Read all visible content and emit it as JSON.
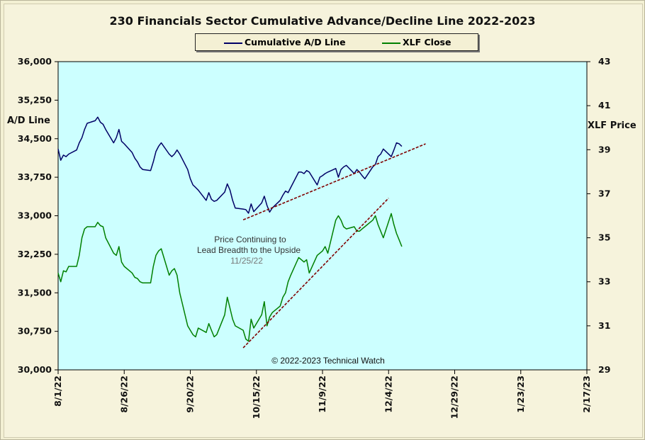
{
  "chart_data": {
    "type": "line",
    "title": "230 Financials  Sector Cumulative  Advance/Decline  Line 2022-2023",
    "left_axis": {
      "label": "A/D Line",
      "ylim": [
        30000,
        36000
      ],
      "ticks": [
        "30,000",
        "30,750",
        "31,500",
        "32,250",
        "33,000",
        "33,750",
        "34,500",
        "35,250",
        "36,000"
      ]
    },
    "right_axis": {
      "label": "XLF Price",
      "ylim": [
        29,
        43
      ],
      "ticks": [
        "29",
        "31",
        "33",
        "35",
        "37",
        "39",
        "41",
        "43"
      ]
    },
    "x_ticks": [
      "8/1/22",
      "8/26/22",
      "9/20/22",
      "10/15/22",
      "11/9/22",
      "12/4/22",
      "12/29/22",
      "1/23/23",
      "2/17/23"
    ],
    "x_range_days": [
      0,
      200
    ],
    "series": [
      {
        "name": "Cumulative A/D Line",
        "axis": "left",
        "color": "#000066",
        "x": [
          0,
          1,
          2,
          3,
          4,
          7,
          8,
          9,
          10,
          11,
          14,
          15,
          16,
          17,
          18,
          21,
          22,
          23,
          24,
          25,
          28,
          29,
          30,
          31,
          32,
          35,
          36,
          37,
          38,
          39,
          42,
          43,
          44,
          45,
          46,
          49,
          50,
          51,
          52,
          53,
          56,
          57,
          58,
          59,
          60,
          63,
          64,
          65,
          66,
          67,
          70,
          71,
          72,
          73,
          74,
          77,
          78,
          79,
          80,
          81,
          84,
          85,
          86,
          87,
          88,
          91,
          92,
          93,
          94,
          95,
          98,
          99,
          100,
          101,
          102,
          105,
          106,
          107,
          108,
          109,
          112,
          113,
          114,
          115,
          116,
          119,
          120,
          121,
          122,
          123,
          126,
          127,
          128,
          129,
          130
        ],
        "values": [
          34300,
          34080,
          34180,
          34150,
          34200,
          34280,
          34420,
          34520,
          34680,
          34800,
          34850,
          34920,
          34820,
          34780,
          34680,
          34420,
          34520,
          34680,
          34450,
          34400,
          34230,
          34120,
          34050,
          33950,
          33900,
          33880,
          34050,
          34250,
          34350,
          34420,
          34200,
          34150,
          34200,
          34280,
          34200,
          33900,
          33720,
          33600,
          33550,
          33500,
          33300,
          33450,
          33320,
          33280,
          33300,
          33460,
          33620,
          33500,
          33300,
          33150,
          33130,
          33120,
          33050,
          33230,
          33080,
          33250,
          33380,
          33200,
          33070,
          33150,
          33300,
          33400,
          33480,
          33450,
          33550,
          33850,
          33850,
          33820,
          33880,
          33850,
          33600,
          33750,
          33780,
          33820,
          33850,
          33920,
          33750,
          33900,
          33950,
          33980,
          33820,
          33900,
          33850,
          33780,
          33720,
          33950,
          34000,
          34150,
          34200,
          34300,
          34150,
          34280,
          34420,
          34400,
          34350
        ]
      },
      {
        "name": "XLF Close",
        "axis": "right",
        "color": "#008000",
        "x": [
          0,
          1,
          2,
          3,
          4,
          7,
          8,
          9,
          10,
          11,
          14,
          15,
          16,
          17,
          18,
          21,
          22,
          23,
          24,
          25,
          28,
          29,
          30,
          31,
          32,
          35,
          36,
          37,
          38,
          39,
          42,
          43,
          44,
          45,
          46,
          49,
          50,
          51,
          52,
          53,
          56,
          57,
          58,
          59,
          60,
          63,
          64,
          65,
          66,
          67,
          70,
          71,
          72,
          73,
          74,
          77,
          78,
          79,
          80,
          81,
          84,
          85,
          86,
          87,
          88,
          91,
          92,
          93,
          94,
          95,
          98,
          99,
          100,
          101,
          102,
          105,
          106,
          107,
          108,
          109,
          112,
          113,
          114,
          115,
          116,
          119,
          120,
          121,
          122,
          123,
          126,
          127,
          128,
          129,
          130
        ],
        "values": [
          33.4,
          33.0,
          33.5,
          33.45,
          33.7,
          33.7,
          34.2,
          35.0,
          35.4,
          35.5,
          35.5,
          35.7,
          35.55,
          35.5,
          35.0,
          34.3,
          34.2,
          34.6,
          33.9,
          33.7,
          33.4,
          33.2,
          33.15,
          33.0,
          32.95,
          32.95,
          33.7,
          34.2,
          34.4,
          34.5,
          33.3,
          33.5,
          33.6,
          33.3,
          32.5,
          31.0,
          30.8,
          30.6,
          30.5,
          30.9,
          30.7,
          31.1,
          30.8,
          30.5,
          30.6,
          31.5,
          32.3,
          31.8,
          31.3,
          31.0,
          30.8,
          30.4,
          30.3,
          31.3,
          30.9,
          31.5,
          32.1,
          31.0,
          31.4,
          31.6,
          31.9,
          32.3,
          32.5,
          33.0,
          33.3,
          34.1,
          34.0,
          33.9,
          34.0,
          33.4,
          34.2,
          34.3,
          34.4,
          34.6,
          34.3,
          35.8,
          36.0,
          35.8,
          35.5,
          35.4,
          35.5,
          35.3,
          35.3,
          35.4,
          35.5,
          35.8,
          36.0,
          35.6,
          35.3,
          35.0,
          36.1,
          35.6,
          35.2,
          34.9,
          34.6
        ]
      }
    ],
    "trendlines": [
      {
        "axis": "left",
        "x": [
          70,
          139
        ],
        "values": [
          32920,
          34400
        ]
      },
      {
        "axis": "right",
        "x": [
          70,
          125
        ],
        "values": [
          30.0,
          36.8
        ]
      }
    ],
    "annotations": {
      "note_line1": "Price Continuing to",
      "note_line2": "Lead Breadth to the Upside",
      "note_date": "11/25/22",
      "copyright": "© 2022-2023  Technical Watch"
    },
    "colors": {
      "plot_background": "#ccffff",
      "frame": "#f3f0d3",
      "trendline": "#800000"
    },
    "grid": false
  }
}
